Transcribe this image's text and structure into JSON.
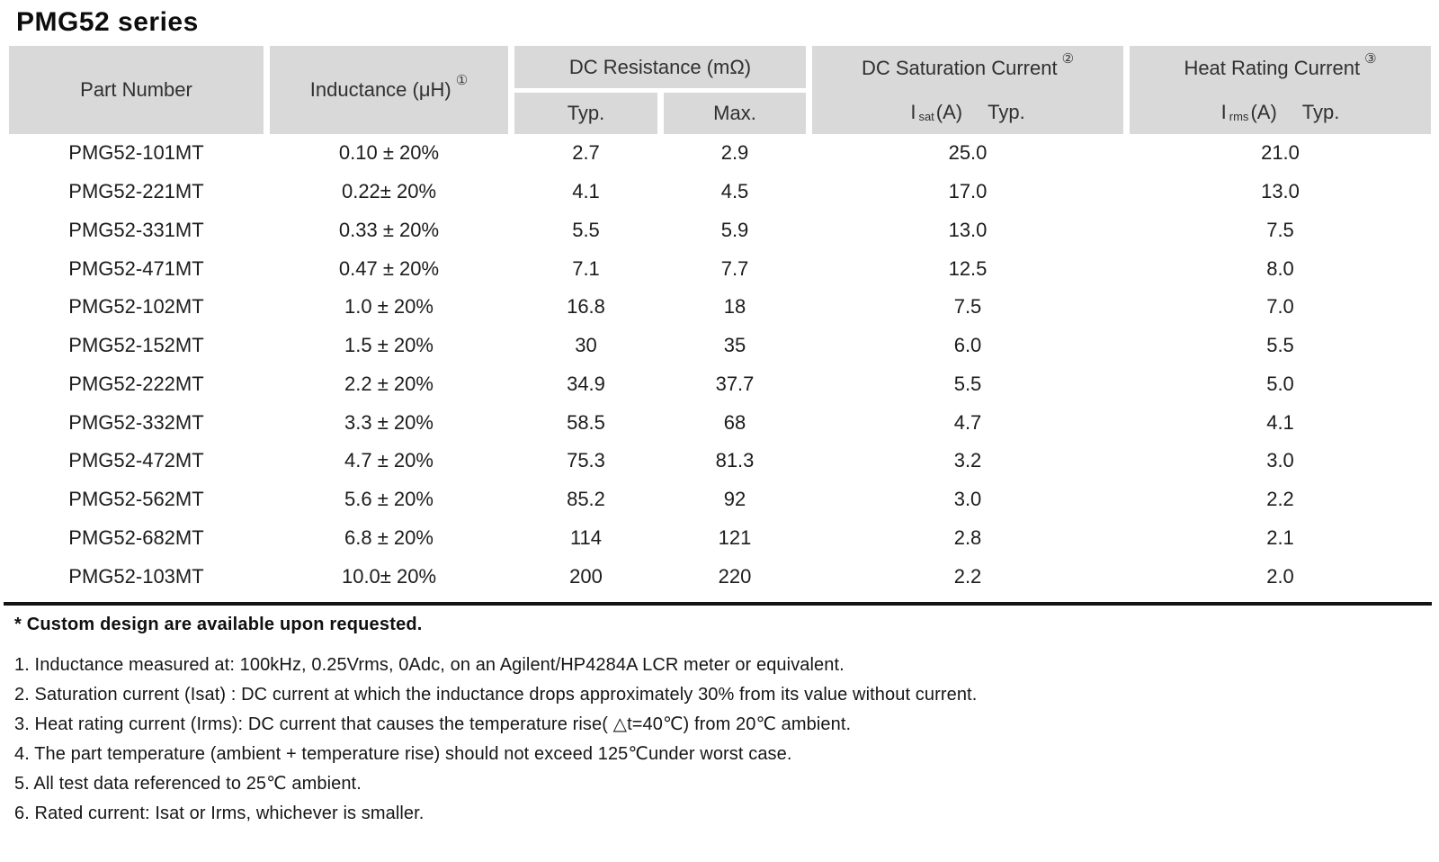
{
  "title": "PMG52 series",
  "table": {
    "header": {
      "part_number": "Part Number",
      "inductance_label": "Inductance (μH)",
      "inductance_note": "①",
      "dc_resistance": "DC Resistance (mΩ)",
      "typ": "Typ.",
      "max": "Max.",
      "saturation_label": "DC Saturation Current",
      "saturation_note": "②",
      "saturation_sub": {
        "symbol": "I",
        "subscript": "sat",
        "unit": "(A)",
        "typ": "Typ."
      },
      "heat_label": "Heat Rating Current",
      "heat_note": "③",
      "heat_sub": {
        "symbol": "I",
        "subscript": "rms",
        "unit": "(A)",
        "typ": "Typ."
      }
    },
    "rows": [
      [
        "PMG52-101MT",
        "0.10 ± 20%",
        "2.7",
        "2.9",
        "25.0",
        "21.0"
      ],
      [
        "PMG52-221MT",
        "0.22± 20%",
        "4.1",
        "4.5",
        "17.0",
        "13.0"
      ],
      [
        "PMG52-331MT",
        "0.33 ± 20%",
        "5.5",
        "5.9",
        "13.0",
        "7.5"
      ],
      [
        "PMG52-471MT",
        "0.47 ± 20%",
        "7.1",
        "7.7",
        "12.5",
        "8.0"
      ],
      [
        "PMG52-102MT",
        "1.0 ± 20%",
        "16.8",
        "18",
        "7.5",
        "7.0"
      ],
      [
        "PMG52-152MT",
        "1.5 ± 20%",
        "30",
        "35",
        "6.0",
        "5.5"
      ],
      [
        "PMG52-222MT",
        "2.2 ± 20%",
        "34.9",
        "37.7",
        "5.5",
        "5.0"
      ],
      [
        "PMG52-332MT",
        "3.3 ± 20%",
        "58.5",
        "68",
        "4.7",
        "4.1"
      ],
      [
        "PMG52-472MT",
        "4.7 ± 20%",
        "75.3",
        "81.3",
        "3.2",
        "3.0"
      ],
      [
        "PMG52-562MT",
        "5.6 ± 20%",
        "85.2",
        "92",
        "3.0",
        "2.2"
      ],
      [
        "PMG52-682MT",
        "6.8 ± 20%",
        "114",
        "121",
        "2.8",
        "2.1"
      ],
      [
        "PMG52-103MT",
        "10.0± 20%",
        "200",
        "220",
        "2.2",
        "2.0"
      ]
    ]
  },
  "footer": {
    "custom_note": "* Custom design are available upon requested.",
    "notes": [
      "1. Inductance measured at: 100kHz, 0.25Vrms, 0Adc, on an Agilent/HP4284A LCR meter or equivalent.",
      "2. Saturation current (Isat) : DC current at which the inductance drops approximately 30% from its value without current.",
      "3. Heat rating current (Irms): DC current that causes the temperature rise( △t=40℃) from 20℃ ambient.",
      "4. The part temperature (ambient + temperature rise) should not exceed 125℃under worst case.",
      "5. All test data referenced to 25℃ ambient.",
      "6. Rated current: Isat or Irms, whichever is smaller."
    ]
  },
  "colors": {
    "header_bg": "#d9d9d9",
    "rule": "#141414"
  }
}
